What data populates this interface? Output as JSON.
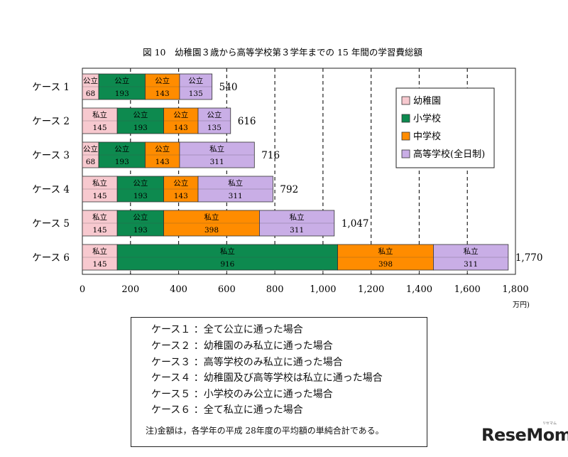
{
  "chart_data": {
    "type": "bar",
    "orientation": "horizontal",
    "stacked": true,
    "title": "図 10　幼稚園３歳から高等学校第３学年までの 15 年間の学習費総額",
    "categories": [
      "ケース 1",
      "ケース 2",
      "ケース 3",
      "ケース 4",
      "ケース 5",
      "ケース 6"
    ],
    "series": [
      {
        "name": "幼稚園",
        "color": "#f7c9cf",
        "values": [
          68,
          145,
          68,
          145,
          145,
          145
        ],
        "labels": [
          "公立",
          "私立",
          "公立",
          "私立",
          "私立",
          "私立"
        ]
      },
      {
        "name": "小学校",
        "color": "#0d8a4f",
        "values": [
          193,
          193,
          193,
          193,
          193,
          916
        ],
        "labels": [
          "公立",
          "公立",
          "公立",
          "公立",
          "公立",
          "私立"
        ]
      },
      {
        "name": "中学校",
        "color": "#ff8c00",
        "values": [
          143,
          143,
          143,
          143,
          398,
          398
        ],
        "labels": [
          "公立",
          "公立",
          "公立",
          "公立",
          "私立",
          "私立"
        ]
      },
      {
        "name": "高等学校(全日制)",
        "color": "#c9aee6",
        "values": [
          135,
          135,
          311,
          311,
          311,
          311
        ],
        "labels": [
          "公立",
          "公立",
          "私立",
          "私立",
          "私立",
          "私立"
        ]
      }
    ],
    "totals": [
      "540",
      "616",
      "716",
      "792",
      "1,047",
      "1,770"
    ],
    "xlim": [
      0,
      1800
    ],
    "xticks": [
      0,
      200,
      400,
      600,
      800,
      1000,
      1200,
      1400,
      1600,
      1800
    ],
    "xtick_labels": [
      "0",
      "200",
      "400",
      "600",
      "800",
      "1,000",
      "1,200",
      "1,400",
      "1,600",
      "1,800"
    ],
    "x_unit": "万円)",
    "grid": "vertical dashed",
    "legend_position": "upper-right"
  },
  "case_descriptions": [
    "ケース１ ：全て公立に通った場合",
    "ケース２ ：幼稚園のみ私立に通った場合",
    "ケース３ ：高等学校のみ私立に通った場合",
    "ケース４ ：幼稚園及び高等学校は私立に通った場合",
    "ケース５ ：小学校のみ公立に通った場合",
    "ケース６ ：全て私立に通った場合"
  ],
  "note": "注)金額は，各学年の平成 28年度の平均額の単純合計である。",
  "watermark": "ReseMom",
  "watermark_sub": "リセマム"
}
